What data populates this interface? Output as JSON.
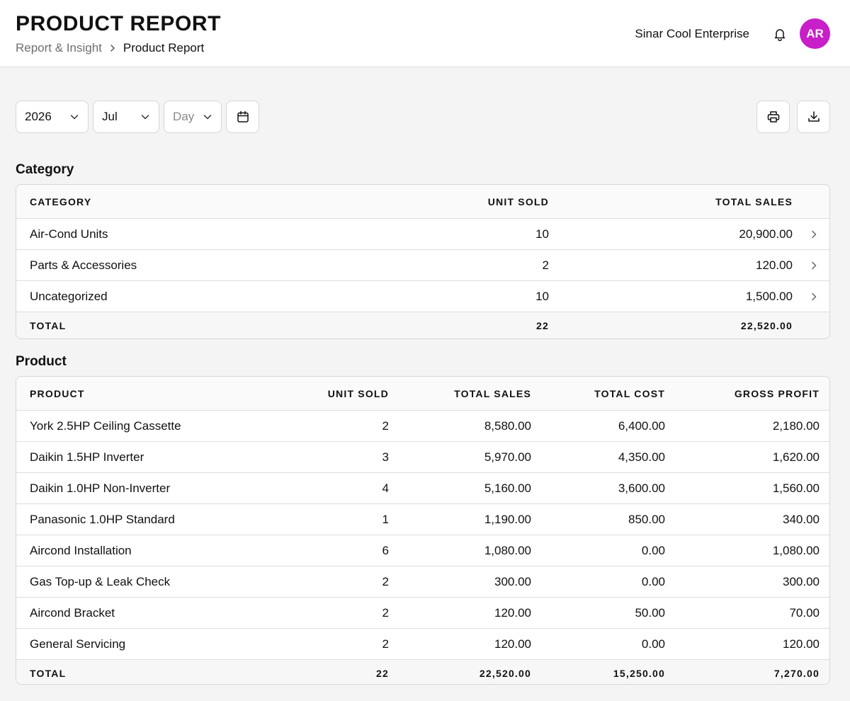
{
  "header": {
    "title": "PRODUCT REPORT",
    "breadcrumb": {
      "parent": "Report & Insight",
      "current": "Product Report"
    },
    "company": "Sinar Cool Enterprise",
    "avatar_initials": "AR",
    "avatar_color": "#c81fc8"
  },
  "filters": {
    "year": "2026",
    "month": "Jul",
    "day_placeholder": "Day"
  },
  "category_section": {
    "title": "Category",
    "headers": {
      "category": "CATEGORY",
      "unit_sold": "UNIT SOLD",
      "total_sales": "TOTAL SALES"
    },
    "rows": [
      {
        "category": "Air-Cond Units",
        "unit_sold": "10",
        "total_sales": "20,900.00"
      },
      {
        "category": "Parts & Accessories",
        "unit_sold": "2",
        "total_sales": "120.00"
      },
      {
        "category": "Uncategorized",
        "unit_sold": "10",
        "total_sales": "1,500.00"
      }
    ],
    "total": {
      "label": "TOTAL",
      "unit_sold": "22",
      "total_sales": "22,520.00"
    }
  },
  "product_section": {
    "title": "Product",
    "headers": {
      "product": "PRODUCT",
      "unit_sold": "UNIT SOLD",
      "total_sales": "TOTAL SALES",
      "total_cost": "TOTAL COST",
      "gross_profit": "GROSS PROFIT"
    },
    "rows": [
      {
        "product": "York 2.5HP Ceiling Cassette",
        "unit_sold": "2",
        "total_sales": "8,580.00",
        "total_cost": "6,400.00",
        "gross_profit": "2,180.00"
      },
      {
        "product": "Daikin 1.5HP Inverter",
        "unit_sold": "3",
        "total_sales": "5,970.00",
        "total_cost": "4,350.00",
        "gross_profit": "1,620.00"
      },
      {
        "product": "Daikin 1.0HP Non-Inverter",
        "unit_sold": "4",
        "total_sales": "5,160.00",
        "total_cost": "3,600.00",
        "gross_profit": "1,560.00"
      },
      {
        "product": "Panasonic 1.0HP Standard",
        "unit_sold": "1",
        "total_sales": "1,190.00",
        "total_cost": "850.00",
        "gross_profit": "340.00"
      },
      {
        "product": "Aircond Installation",
        "unit_sold": "6",
        "total_sales": "1,080.00",
        "total_cost": "0.00",
        "gross_profit": "1,080.00"
      },
      {
        "product": "Gas Top-up & Leak Check",
        "unit_sold": "2",
        "total_sales": "300.00",
        "total_cost": "0.00",
        "gross_profit": "300.00"
      },
      {
        "product": "Aircond Bracket",
        "unit_sold": "2",
        "total_sales": "120.00",
        "total_cost": "50.00",
        "gross_profit": "70.00"
      },
      {
        "product": "General Servicing",
        "unit_sold": "2",
        "total_sales": "120.00",
        "total_cost": "0.00",
        "gross_profit": "120.00"
      }
    ],
    "total": {
      "label": "TOTAL",
      "unit_sold": "22",
      "total_sales": "22,520.00",
      "total_cost": "15,250.00",
      "gross_profit": "7,270.00"
    }
  },
  "icons": {
    "bell": "bell-icon",
    "calendar": "calendar-icon",
    "print": "printer-icon",
    "download": "download-icon",
    "chevron_down": "chevron-down-icon",
    "chevron_right": "chevron-right-icon"
  }
}
